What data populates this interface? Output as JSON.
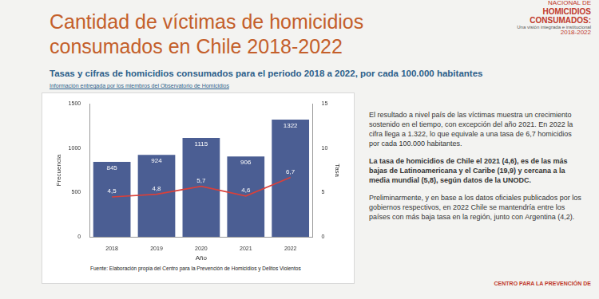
{
  "header": {
    "title": "Cantidad de víctimas de homicidios consumados en Chile 2018-2022",
    "logo": [
      "NACIONAL DE",
      "HOMICIDIOS",
      "CONSUMADOS:",
      "Una visión integrada e institucional",
      "2018-2022"
    ],
    "subtitle": "Tasas y cifras de homicidios consumados para el periodo 2018 a 2022, por cada 100.000 habitantes",
    "note": "Información entregada por los miembros del Observatorio de Homicidios"
  },
  "chart_data": {
    "type": "bar",
    "categories": [
      "2018",
      "2019",
      "2020",
      "2021",
      "2022"
    ],
    "series": [
      {
        "name": "Frecuencia",
        "type": "bar",
        "color": "#4b5e93",
        "values": [
          845,
          924,
          1115,
          906,
          1322
        ]
      },
      {
        "name": "Tasa",
        "type": "line",
        "color": "#d9403a",
        "axis": "y2",
        "values": [
          4.5,
          4.8,
          5.7,
          4.6,
          6.7
        ],
        "value_labels": [
          "4,5",
          "4,8",
          "5,7",
          "4,6",
          "6,7"
        ]
      }
    ],
    "x_label": "Año",
    "y_label": "Frecuencia",
    "y2_label": "Tasa",
    "ylim": [
      0,
      1500
    ],
    "yticks": [
      0,
      500,
      1000,
      1500
    ],
    "y2lim": [
      0,
      15
    ],
    "y2ticks": [
      0,
      5,
      10,
      15
    ],
    "grid": false,
    "data_labels": true,
    "source": "Fuente: Elaboración propia del Centro para la Prevención de Homicidios y Delitos Violentos"
  },
  "text": {
    "paragraphs": [
      {
        "text": "El resultado a nivel país de las víctimas muestra un crecimiento sostenido en el tiempo, con excepción del año 2021. En 2022 la cifra llega a 1.322, lo que equivale a una tasa de 6,7 homicidios por cada 100.000 habitantes.",
        "bold": false
      },
      {
        "text": "La tasa de homicidios de Chile el 2021 (4,6), es de las más bajas de Latinoamericana y el Caribe (19,9) y cercana a la media mundial (5,8), según datos de la UNODC.",
        "bold": true
      },
      {
        "text": "Preliminarmente, y en base a los datos oficiales publicados por los gobiernos respectivos, en 2022 Chile se mantendría entre los países con más baja tasa en la región, junto con Argentina (4,2).",
        "bold": false
      }
    ],
    "footer": "CENTRO PARA LA PREVENCIÓN DE"
  }
}
